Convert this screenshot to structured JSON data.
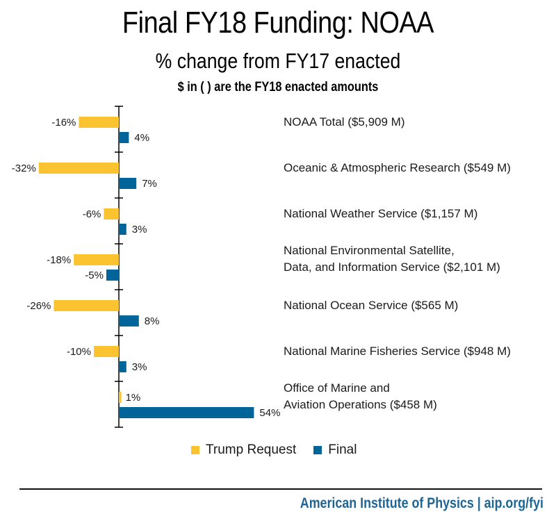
{
  "header": {
    "title": "Final FY18 Funding: NOAA",
    "subtitle": "% change from FY17 enacted",
    "note": "$ in ( ) are the FY18 enacted amounts"
  },
  "colors": {
    "trump_request": "#fcc331",
    "final": "#02659a",
    "footer_text": "#1e6594"
  },
  "chart_data": {
    "type": "bar",
    "orientation": "horizontal",
    "title": "Final FY18 Funding: NOAA",
    "subtitle": "% change from FY17 enacted",
    "xlabel": "",
    "ylabel": "",
    "unit": "%",
    "grid": false,
    "legend_position": "bottom",
    "categories": [
      [
        "NOAA Total ($5,909 M)"
      ],
      [
        "Oceanic & Atmospheric Research ($549 M)"
      ],
      [
        "National Weather Service ($1,157 M)"
      ],
      [
        "National Environmental Satellite,",
        "Data, and Information Service ($2,101 M)"
      ],
      [
        "National Ocean Service ($565 M)"
      ],
      [
        "National Marine Fisheries Service ($948 M)"
      ],
      [
        "Office of Marine and",
        "Aviation Operations ($458 M)"
      ]
    ],
    "series": [
      {
        "name": "Trump Request",
        "color": "#fcc331",
        "values": [
          -16,
          -32,
          -6,
          -18,
          -26,
          -10,
          1
        ]
      },
      {
        "name": "Final",
        "color": "#02659a",
        "values": [
          4,
          7,
          3,
          -5,
          8,
          3,
          54
        ]
      }
    ],
    "data_labels": [
      [
        "-16%",
        "-32%",
        "-6%",
        "-18%",
        "-26%",
        "-10%",
        "1%"
      ],
      [
        "4%",
        "7%",
        "3%",
        "-5%",
        "8%",
        "3%",
        "54%"
      ]
    ]
  },
  "legend": [
    {
      "label": "Trump Request"
    },
    {
      "label": "Final"
    }
  ],
  "footer": {
    "credit": "American Institute of Physics | aip.org/fyi"
  }
}
